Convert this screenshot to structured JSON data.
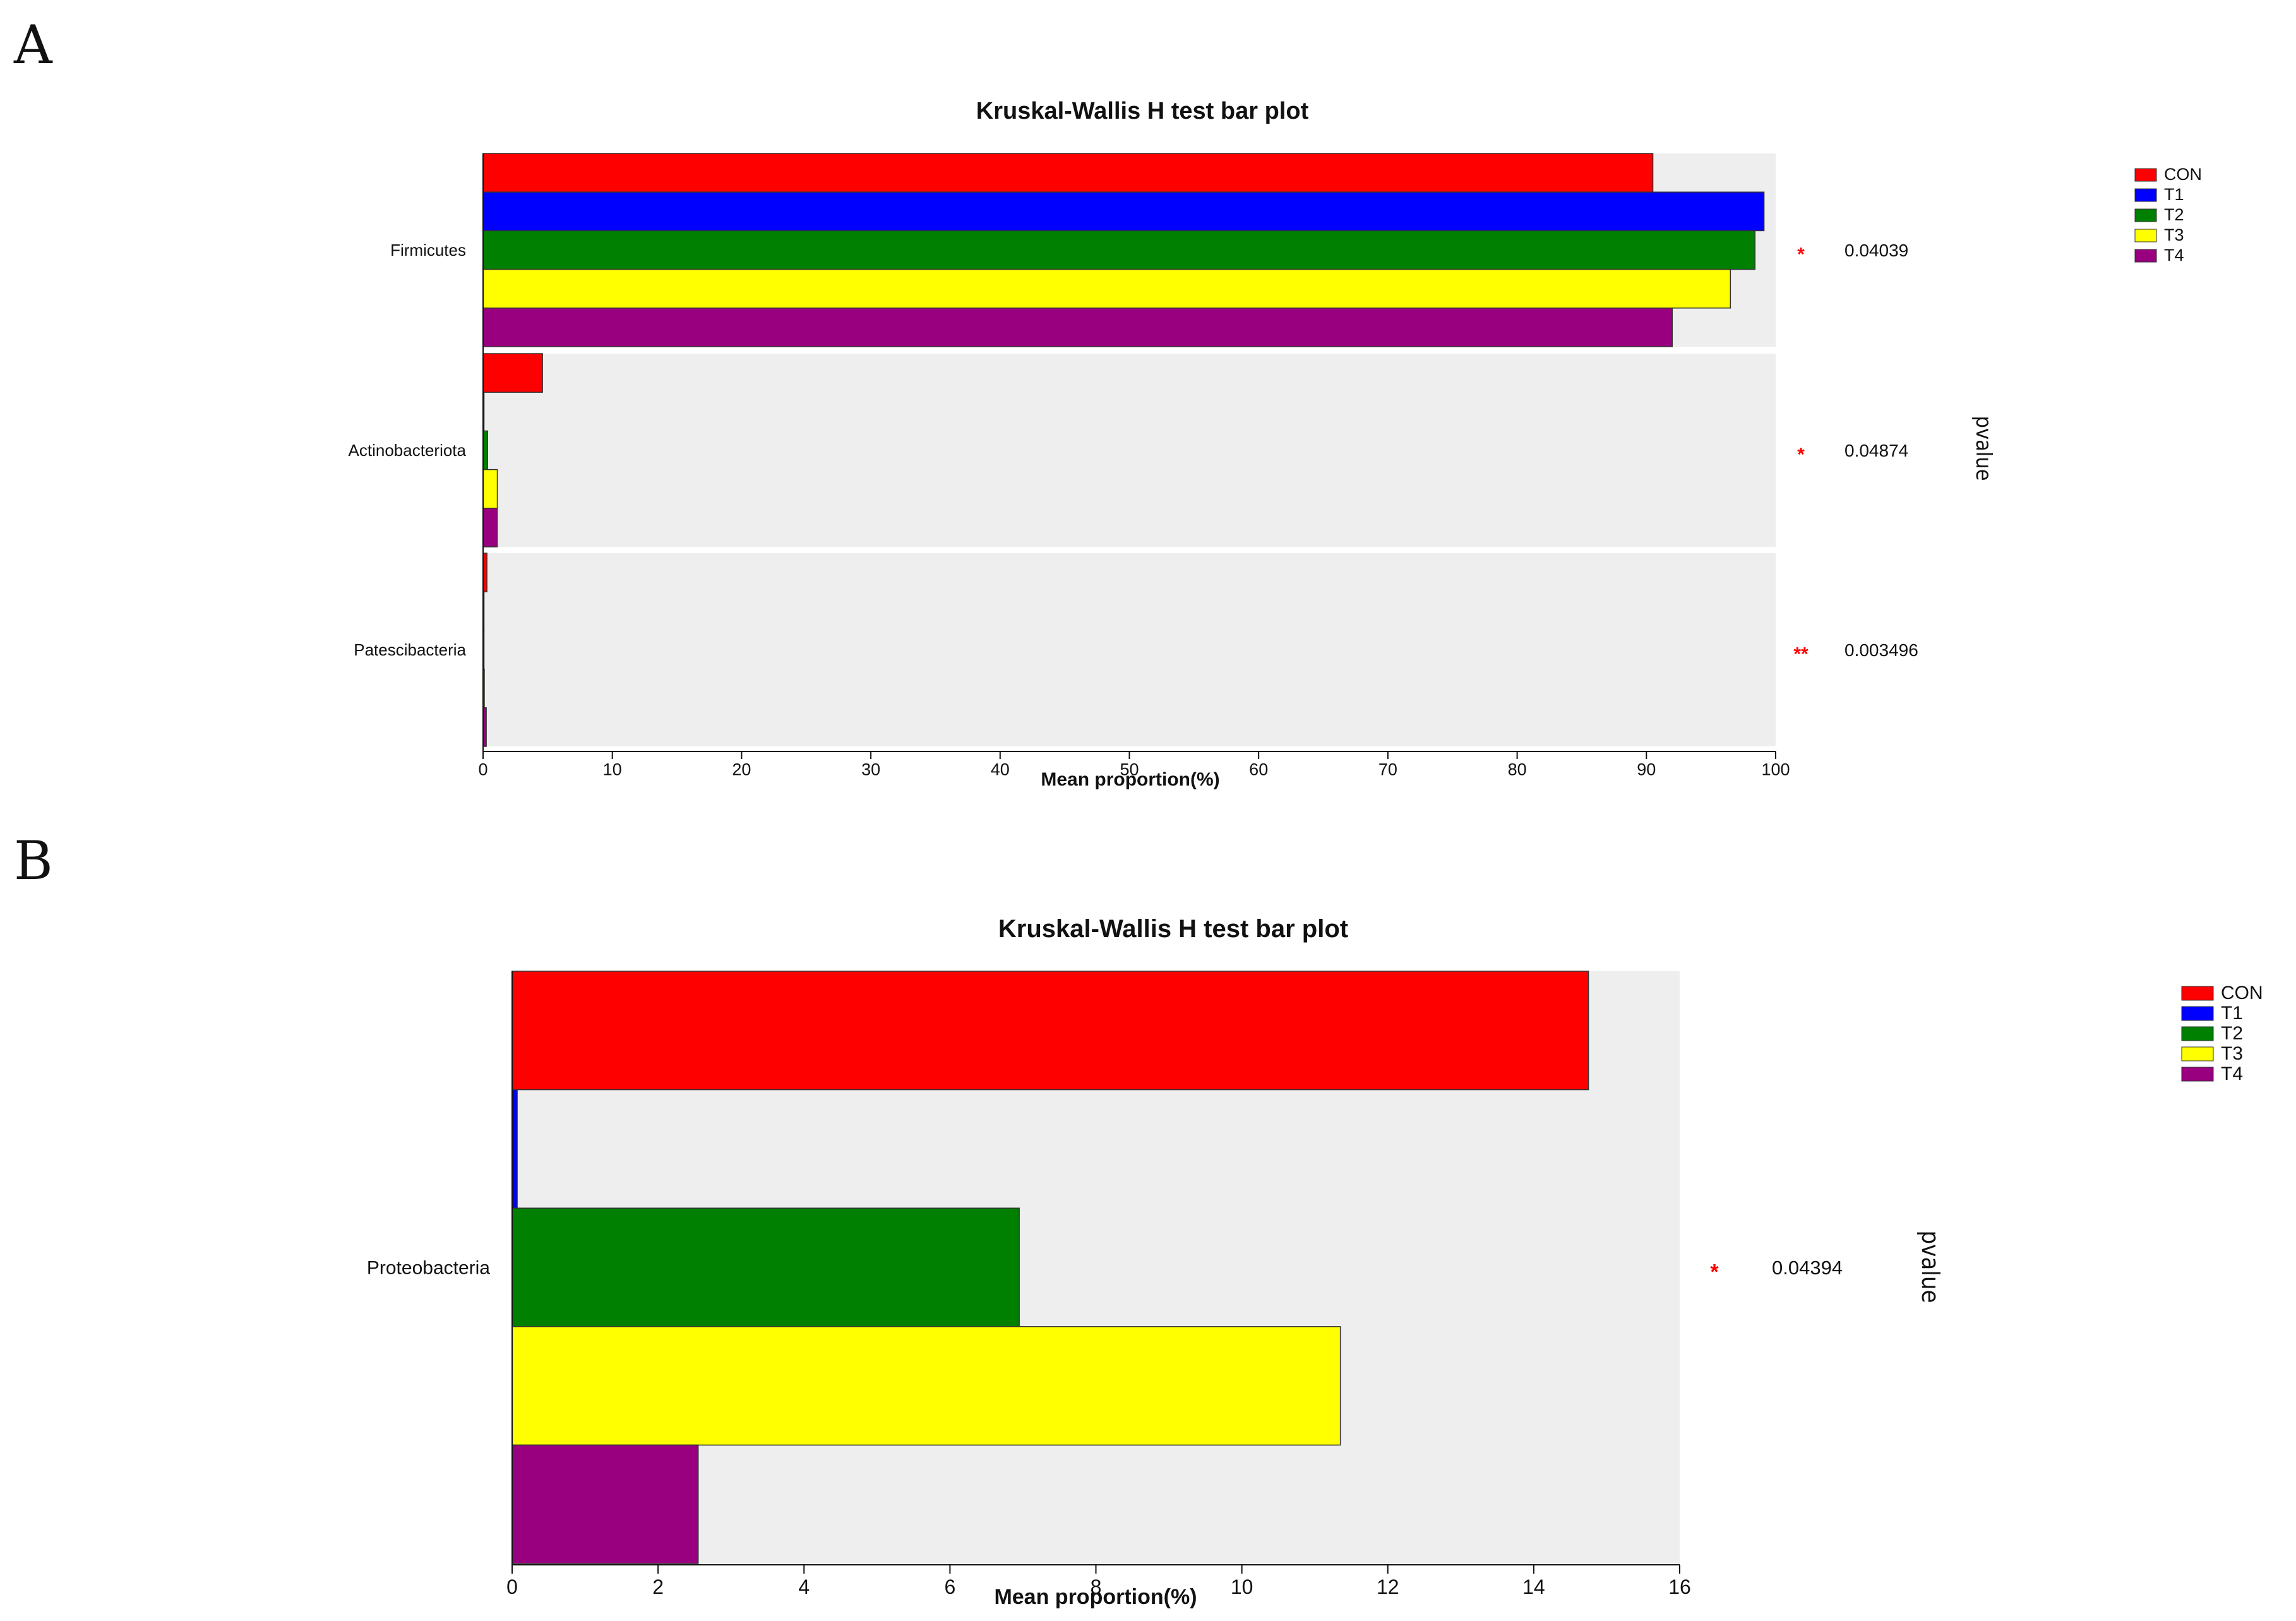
{
  "panels": [
    {
      "letter": "A",
      "chart_data": {
        "type": "bar",
        "orientation": "horizontal",
        "title": "Kruskal-Wallis H test bar plot",
        "xlabel": "Mean proportion(%)",
        "xlim": [
          0,
          100
        ],
        "xticks": [
          0,
          10,
          20,
          30,
          40,
          50,
          60,
          70,
          80,
          90,
          100
        ],
        "categories": [
          "Firmicutes",
          "Actinobacteriota",
          "Patescibacteria"
        ],
        "series": [
          {
            "name": "CON",
            "color": "#ff0000",
            "values": [
              90.5,
              4.6,
              0.3
            ]
          },
          {
            "name": "T1",
            "color": "#0000ff",
            "values": [
              99.1,
              0.02,
              0.05
            ]
          },
          {
            "name": "T2",
            "color": "#008000",
            "values": [
              98.4,
              0.35,
              0.05
            ]
          },
          {
            "name": "T3",
            "color": "#ffff00",
            "values": [
              96.5,
              1.1,
              0.1
            ]
          },
          {
            "name": "T4",
            "color": "#990080",
            "values": [
              92.0,
              1.1,
              0.25
            ]
          }
        ],
        "significance": [
          "*",
          "*",
          "**"
        ],
        "pvalues": [
          "0.04039",
          "0.04874",
          "0.003496"
        ],
        "pvalue_axis_label": "pvalue",
        "legend_position": "top-right",
        "panel_background": "#eeeeee"
      }
    },
    {
      "letter": "B",
      "chart_data": {
        "type": "bar",
        "orientation": "horizontal",
        "title": "Kruskal-Wallis H test bar plot",
        "xlabel": "Mean proportion(%)",
        "xlim": [
          0,
          16
        ],
        "xticks": [
          0,
          2,
          4,
          6,
          8,
          10,
          12,
          14,
          16
        ],
        "categories": [
          "Proteobacteria"
        ],
        "series": [
          {
            "name": "CON",
            "color": "#ff0000",
            "values": [
              14.75
            ]
          },
          {
            "name": "T1",
            "color": "#0000ff",
            "values": [
              0.07
            ]
          },
          {
            "name": "T2",
            "color": "#008000",
            "values": [
              6.95
            ]
          },
          {
            "name": "T3",
            "color": "#ffff00",
            "values": [
              11.35
            ]
          },
          {
            "name": "T4",
            "color": "#990080",
            "values": [
              2.55
            ]
          }
        ],
        "significance": [
          "*"
        ],
        "pvalues": [
          "0.04394"
        ],
        "pvalue_axis_label": "pvalue",
        "legend_position": "top-right",
        "panel_background": "#eeeeee"
      }
    }
  ]
}
